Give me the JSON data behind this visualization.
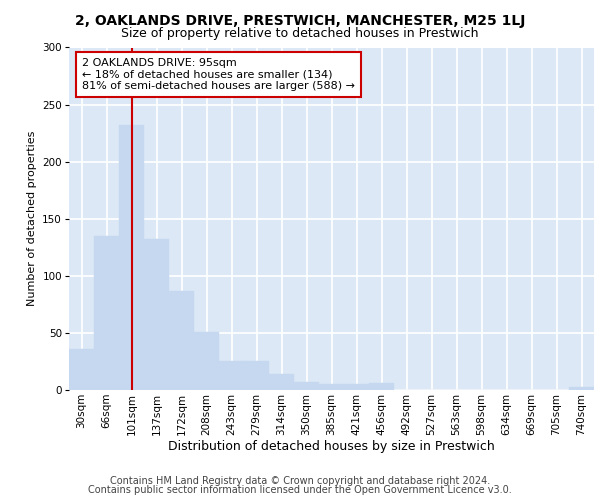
{
  "title_line1": "2, OAKLANDS DRIVE, PRESTWICH, MANCHESTER, M25 1LJ",
  "title_line2": "Size of property relative to detached houses in Prestwich",
  "xlabel": "Distribution of detached houses by size in Prestwich",
  "ylabel": "Number of detached properties",
  "bar_values": [
    36,
    135,
    232,
    132,
    87,
    51,
    25,
    25,
    14,
    7,
    5,
    5,
    6,
    0,
    0,
    0,
    0,
    0,
    0,
    0,
    3
  ],
  "bin_labels": [
    "30sqm",
    "66sqm",
    "101sqm",
    "137sqm",
    "172sqm",
    "208sqm",
    "243sqm",
    "279sqm",
    "314sqm",
    "350sqm",
    "385sqm",
    "421sqm",
    "456sqm",
    "492sqm",
    "527sqm",
    "563sqm",
    "598sqm",
    "634sqm",
    "669sqm",
    "705sqm",
    "740sqm"
  ],
  "bar_color": "#c5d8f0",
  "bar_edge_color": "#c5d8f0",
  "vline_x": 2,
  "vline_color": "#cc0000",
  "annotation_text": "2 OAKLANDS DRIVE: 95sqm\n← 18% of detached houses are smaller (134)\n81% of semi-detached houses are larger (588) →",
  "annotation_box_facecolor": "#ffffff",
  "annotation_box_edgecolor": "#cc0000",
  "ylim": [
    0,
    300
  ],
  "yticks": [
    0,
    50,
    100,
    150,
    200,
    250,
    300
  ],
  "footer_line1": "Contains HM Land Registry data © Crown copyright and database right 2024.",
  "footer_line2": "Contains public sector information licensed under the Open Government Licence v3.0.",
  "bg_color": "#ffffff",
  "plot_bg_color": "#dce8f5",
  "grid_color": "#ffffff",
  "title1_fontsize": 10,
  "title2_fontsize": 9,
  "ylabel_fontsize": 8,
  "xlabel_fontsize": 9,
  "tick_fontsize": 7.5,
  "annot_fontsize": 8,
  "footer_fontsize": 7
}
